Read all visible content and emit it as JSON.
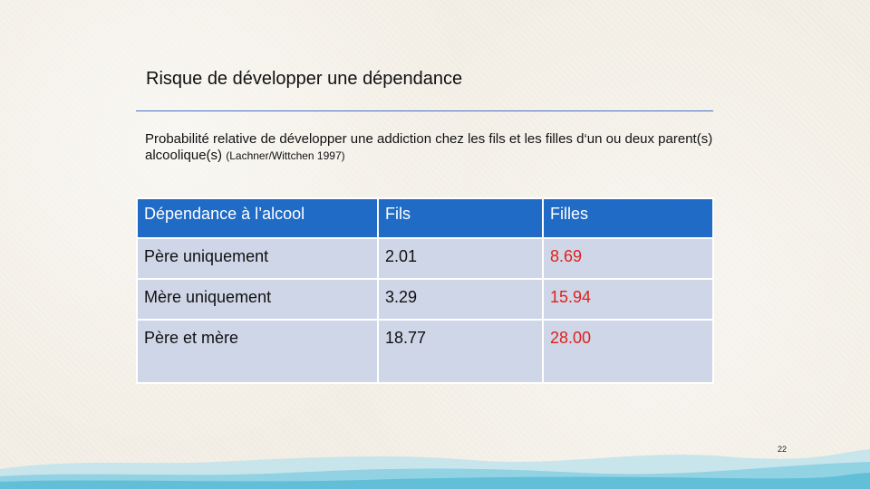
{
  "slide": {
    "title": "Risque de développer une dépendance",
    "subtitle_main": "Probabilité relative de développer une addiction chez les fils et les filles d‘un ou deux parent(s) alcoolique(s)",
    "subtitle_source": "(Lachner/Wittchen 1997)",
    "page_number": "22"
  },
  "table": {
    "headers": [
      "Dépendance à l’alcool",
      "Fils",
      "Filles"
    ],
    "rows": [
      [
        "Père uniquement",
        "2.01",
        "8.69"
      ],
      [
        "Mère uniquement",
        "3.29",
        "15.94"
      ],
      [
        "Père et mère",
        "18.77",
        "28.00"
      ]
    ]
  },
  "colors": {
    "header_bg": "#1f6bc6",
    "cell_bg": "#cfd6e8",
    "highlight_text": "#e0201b",
    "rule": "#4472c4"
  }
}
